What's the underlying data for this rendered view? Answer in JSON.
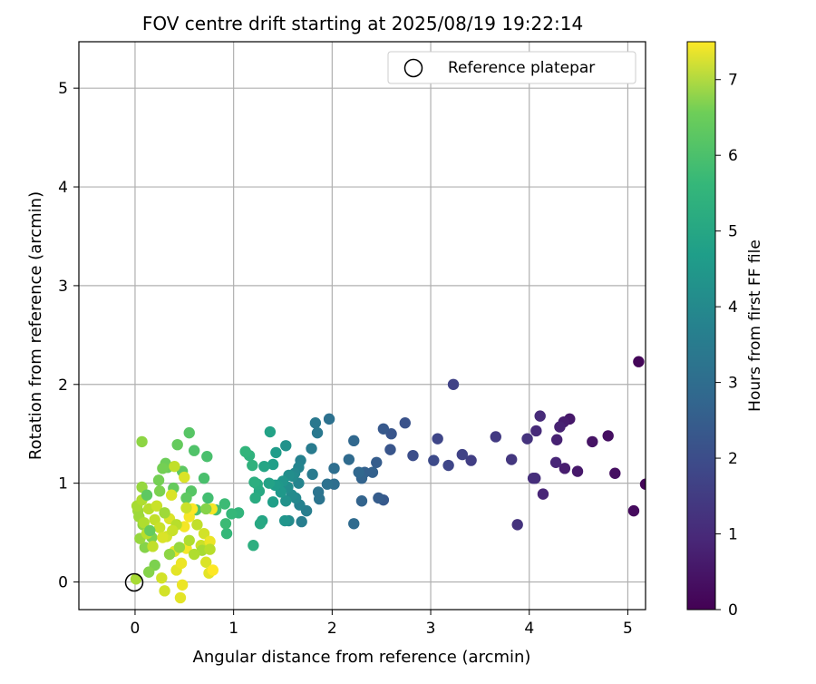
{
  "chart_data": {
    "type": "scatter",
    "title": "FOV centre drift starting at 2025/08/19 19:22:14",
    "xlabel": "Angular distance from reference (arcmin)",
    "ylabel": "Rotation from reference (arcmin)",
    "xlim": [
      -0.57,
      5.18
    ],
    "ylim": [
      -0.28,
      5.47
    ],
    "xticks": [
      0,
      1,
      2,
      3,
      4,
      5
    ],
    "yticks": [
      0,
      1,
      2,
      3,
      4,
      5
    ],
    "grid": true,
    "legend": {
      "position": "top-right",
      "entries": [
        "Reference platepar"
      ]
    },
    "reference_point": {
      "x": 0,
      "y": 0
    },
    "colorbar": {
      "label": "Hours from first FF file",
      "range": [
        0,
        7.5
      ],
      "ticks": [
        0,
        1,
        2,
        3,
        4,
        5,
        6,
        7
      ],
      "colormap": "viridis"
    },
    "points": [
      [
        5.11,
        2.23,
        0.1
      ],
      [
        5.18,
        0.99,
        0.1
      ],
      [
        5.06,
        0.72,
        0.2
      ],
      [
        4.87,
        1.1,
        0.3
      ],
      [
        4.8,
        1.48,
        0.3
      ],
      [
        4.64,
        1.42,
        0.4
      ],
      [
        4.49,
        1.12,
        0.5
      ],
      [
        4.41,
        1.65,
        0.5
      ],
      [
        4.35,
        1.62,
        0.6
      ],
      [
        4.36,
        1.15,
        0.6
      ],
      [
        4.31,
        1.57,
        0.7
      ],
      [
        4.28,
        1.44,
        0.7
      ],
      [
        4.27,
        1.21,
        0.8
      ],
      [
        4.14,
        0.89,
        0.8
      ],
      [
        4.11,
        1.68,
        0.9
      ],
      [
        4.07,
        1.53,
        0.9
      ],
      [
        4.06,
        1.05,
        1.0
      ],
      [
        4.04,
        1.05,
        1.0
      ],
      [
        3.98,
        1.45,
        1.1
      ],
      [
        3.88,
        0.58,
        1.1
      ],
      [
        3.82,
        1.24,
        1.2
      ],
      [
        3.66,
        1.47,
        1.3
      ],
      [
        3.41,
        1.23,
        1.4
      ],
      [
        3.32,
        1.29,
        1.5
      ],
      [
        3.23,
        2.0,
        1.5
      ],
      [
        3.18,
        1.18,
        1.6
      ],
      [
        3.07,
        1.45,
        1.6
      ],
      [
        3.03,
        1.23,
        1.7
      ],
      [
        2.82,
        1.28,
        1.8
      ],
      [
        2.74,
        1.61,
        1.9
      ],
      [
        2.6,
        1.5,
        2.0
      ],
      [
        2.59,
        1.34,
        2.0
      ],
      [
        2.52,
        1.55,
        2.1
      ],
      [
        2.52,
        0.83,
        2.1
      ],
      [
        2.47,
        0.85,
        2.2
      ],
      [
        2.45,
        1.21,
        2.2
      ],
      [
        2.41,
        1.11,
        2.3
      ],
      [
        2.33,
        1.11,
        2.3
      ],
      [
        2.3,
        1.05,
        2.4
      ],
      [
        2.3,
        0.82,
        2.4
      ],
      [
        2.27,
        1.11,
        2.5
      ],
      [
        2.22,
        1.43,
        2.5
      ],
      [
        2.22,
        0.59,
        2.6
      ],
      [
        2.17,
        1.24,
        2.6
      ],
      [
        2.02,
        0.99,
        2.7
      ],
      [
        2.02,
        1.15,
        2.7
      ],
      [
        1.97,
        1.65,
        2.8
      ],
      [
        1.95,
        0.99,
        2.8
      ],
      [
        1.87,
        0.84,
        2.9
      ],
      [
        1.86,
        0.91,
        2.9
      ],
      [
        1.85,
        1.51,
        3.0
      ],
      [
        1.83,
        1.61,
        3.0
      ],
      [
        1.79,
        1.35,
        3.1
      ],
      [
        1.8,
        1.09,
        3.1
      ],
      [
        1.74,
        0.72,
        3.2
      ],
      [
        1.69,
        0.61,
        3.2
      ],
      [
        1.68,
        1.23,
        3.3
      ],
      [
        1.67,
        0.78,
        3.3
      ],
      [
        1.66,
        1.16,
        3.4
      ],
      [
        1.66,
        1.0,
        3.4
      ],
      [
        1.63,
        0.85,
        3.5
      ],
      [
        1.62,
        1.1,
        3.5
      ],
      [
        1.6,
        1.07,
        3.6
      ],
      [
        1.59,
        0.88,
        3.6
      ],
      [
        1.56,
        0.62,
        3.6
      ],
      [
        1.56,
        1.08,
        3.7
      ],
      [
        1.55,
        0.96,
        3.7
      ],
      [
        1.53,
        1.38,
        3.8
      ],
      [
        1.53,
        0.82,
        3.8
      ],
      [
        1.52,
        0.62,
        3.9
      ],
      [
        1.5,
        1.02,
        3.9
      ],
      [
        1.48,
        0.91,
        4.0
      ],
      [
        1.45,
        0.98,
        4.0
      ],
      [
        1.43,
        1.31,
        4.1
      ],
      [
        1.42,
        0.98,
        4.1
      ],
      [
        1.4,
        0.81,
        4.2
      ],
      [
        1.4,
        1.19,
        4.2
      ],
      [
        1.37,
        1.52,
        4.3
      ],
      [
        1.36,
        1.0,
        4.3
      ],
      [
        1.31,
        1.17,
        4.4
      ],
      [
        1.29,
        0.62,
        4.4
      ],
      [
        1.27,
        0.59,
        4.5
      ],
      [
        1.26,
        0.92,
        4.5
      ],
      [
        1.24,
        0.99,
        4.6
      ],
      [
        1.22,
        0.85,
        4.6
      ],
      [
        1.21,
        1.01,
        4.7
      ],
      [
        1.2,
        0.37,
        4.7
      ],
      [
        1.19,
        1.18,
        4.8
      ],
      [
        1.16,
        1.28,
        4.8
      ],
      [
        1.12,
        1.32,
        4.9
      ],
      [
        1.05,
        0.7,
        4.9
      ],
      [
        0.98,
        0.69,
        5.0
      ],
      [
        0.93,
        0.49,
        5.0
      ],
      [
        0.92,
        0.59,
        5.1
      ],
      [
        0.91,
        0.79,
        5.1
      ],
      [
        0.82,
        0.73,
        5.2
      ],
      [
        0.74,
        0.85,
        5.2
      ],
      [
        0.73,
        1.27,
        5.3
      ],
      [
        0.7,
        1.05,
        5.3
      ],
      [
        0.62,
        0.73,
        5.4
      ],
      [
        0.6,
        1.33,
        5.4
      ],
      [
        0.57,
        0.92,
        5.5
      ],
      [
        0.55,
        1.51,
        5.5
      ],
      [
        0.52,
        0.85,
        5.6
      ],
      [
        0.48,
        1.12,
        5.6
      ],
      [
        0.43,
        1.39,
        5.7
      ],
      [
        0.39,
        0.95,
        5.7
      ],
      [
        0.33,
        1.16,
        5.8
      ],
      [
        0.31,
        1.2,
        5.8
      ],
      [
        0.28,
        1.15,
        5.9
      ],
      [
        0.24,
        1.03,
        5.9
      ],
      [
        0.2,
        0.17,
        6.0
      ],
      [
        0.17,
        0.45,
        6.0
      ],
      [
        0.14,
        0.1,
        6.1
      ],
      [
        0.1,
        0.35,
        6.1
      ],
      [
        0.08,
        0.58,
        6.2
      ],
      [
        0.07,
        1.42,
        6.2
      ],
      [
        0.07,
        0.96,
        6.3
      ],
      [
        0.05,
        0.44,
        6.3
      ],
      [
        0.04,
        0.66,
        6.4
      ],
      [
        0.03,
        0.72,
        6.4
      ],
      [
        0.02,
        0.77,
        6.5
      ],
      [
        0.01,
        0.03,
        6.5
      ],
      [
        0.07,
        0.83,
        6.6
      ],
      [
        0.09,
        0.6,
        6.6
      ],
      [
        0.12,
        0.49,
        6.7
      ],
      [
        0.14,
        0.74,
        6.7
      ],
      [
        0.18,
        0.36,
        6.8
      ],
      [
        0.2,
        0.63,
        6.8
      ],
      [
        0.22,
        0.77,
        6.9
      ],
      [
        0.25,
        0.55,
        6.9
      ],
      [
        0.27,
        0.04,
        7.0
      ],
      [
        0.3,
        -0.09,
        7.0
      ],
      [
        0.32,
        0.46,
        7.0
      ],
      [
        0.35,
        0.64,
        7.1
      ],
      [
        0.37,
        0.88,
        7.1
      ],
      [
        0.4,
        0.31,
        7.2
      ],
      [
        0.42,
        0.12,
        7.2
      ],
      [
        0.46,
        -0.16,
        7.2
      ],
      [
        0.47,
        0.19,
        7.3
      ],
      [
        0.48,
        -0.03,
        7.3
      ],
      [
        0.5,
        0.56,
        7.4
      ],
      [
        0.52,
        0.34,
        7.4
      ],
      [
        0.55,
        0.66,
        7.4
      ],
      [
        0.58,
        0.74,
        7.5
      ],
      [
        0.63,
        0.58,
        6.8
      ],
      [
        0.67,
        0.37,
        6.9
      ],
      [
        0.7,
        0.49,
        7.0
      ],
      [
        0.72,
        0.2,
        7.1
      ],
      [
        0.75,
        0.09,
        7.2
      ],
      [
        0.76,
        0.41,
        7.3
      ],
      [
        0.78,
        0.74,
        7.4
      ],
      [
        0.72,
        0.74,
        6.1
      ],
      [
        0.68,
        0.32,
        6.5
      ],
      [
        0.55,
        0.42,
        6.6
      ],
      [
        0.45,
        0.35,
        6.3
      ],
      [
        0.35,
        0.28,
        6.2
      ],
      [
        0.25,
        0.92,
        6.0
      ],
      [
        0.3,
        0.7,
        6.4
      ],
      [
        0.42,
        0.58,
        6.7
      ],
      [
        0.38,
        0.52,
        6.9
      ],
      [
        0.28,
        0.45,
        7.1
      ],
      [
        0.52,
        0.75,
        6.9
      ],
      [
        0.6,
        0.28,
        6.6
      ],
      [
        0.15,
        0.52,
        5.7
      ],
      [
        0.12,
        0.88,
        5.6
      ],
      [
        0.5,
        1.06,
        7.1
      ],
      [
        0.4,
        1.17,
        6.8
      ],
      [
        0.79,
        0.12,
        7.5
      ],
      [
        0.76,
        0.33,
        6.7
      ]
    ]
  }
}
